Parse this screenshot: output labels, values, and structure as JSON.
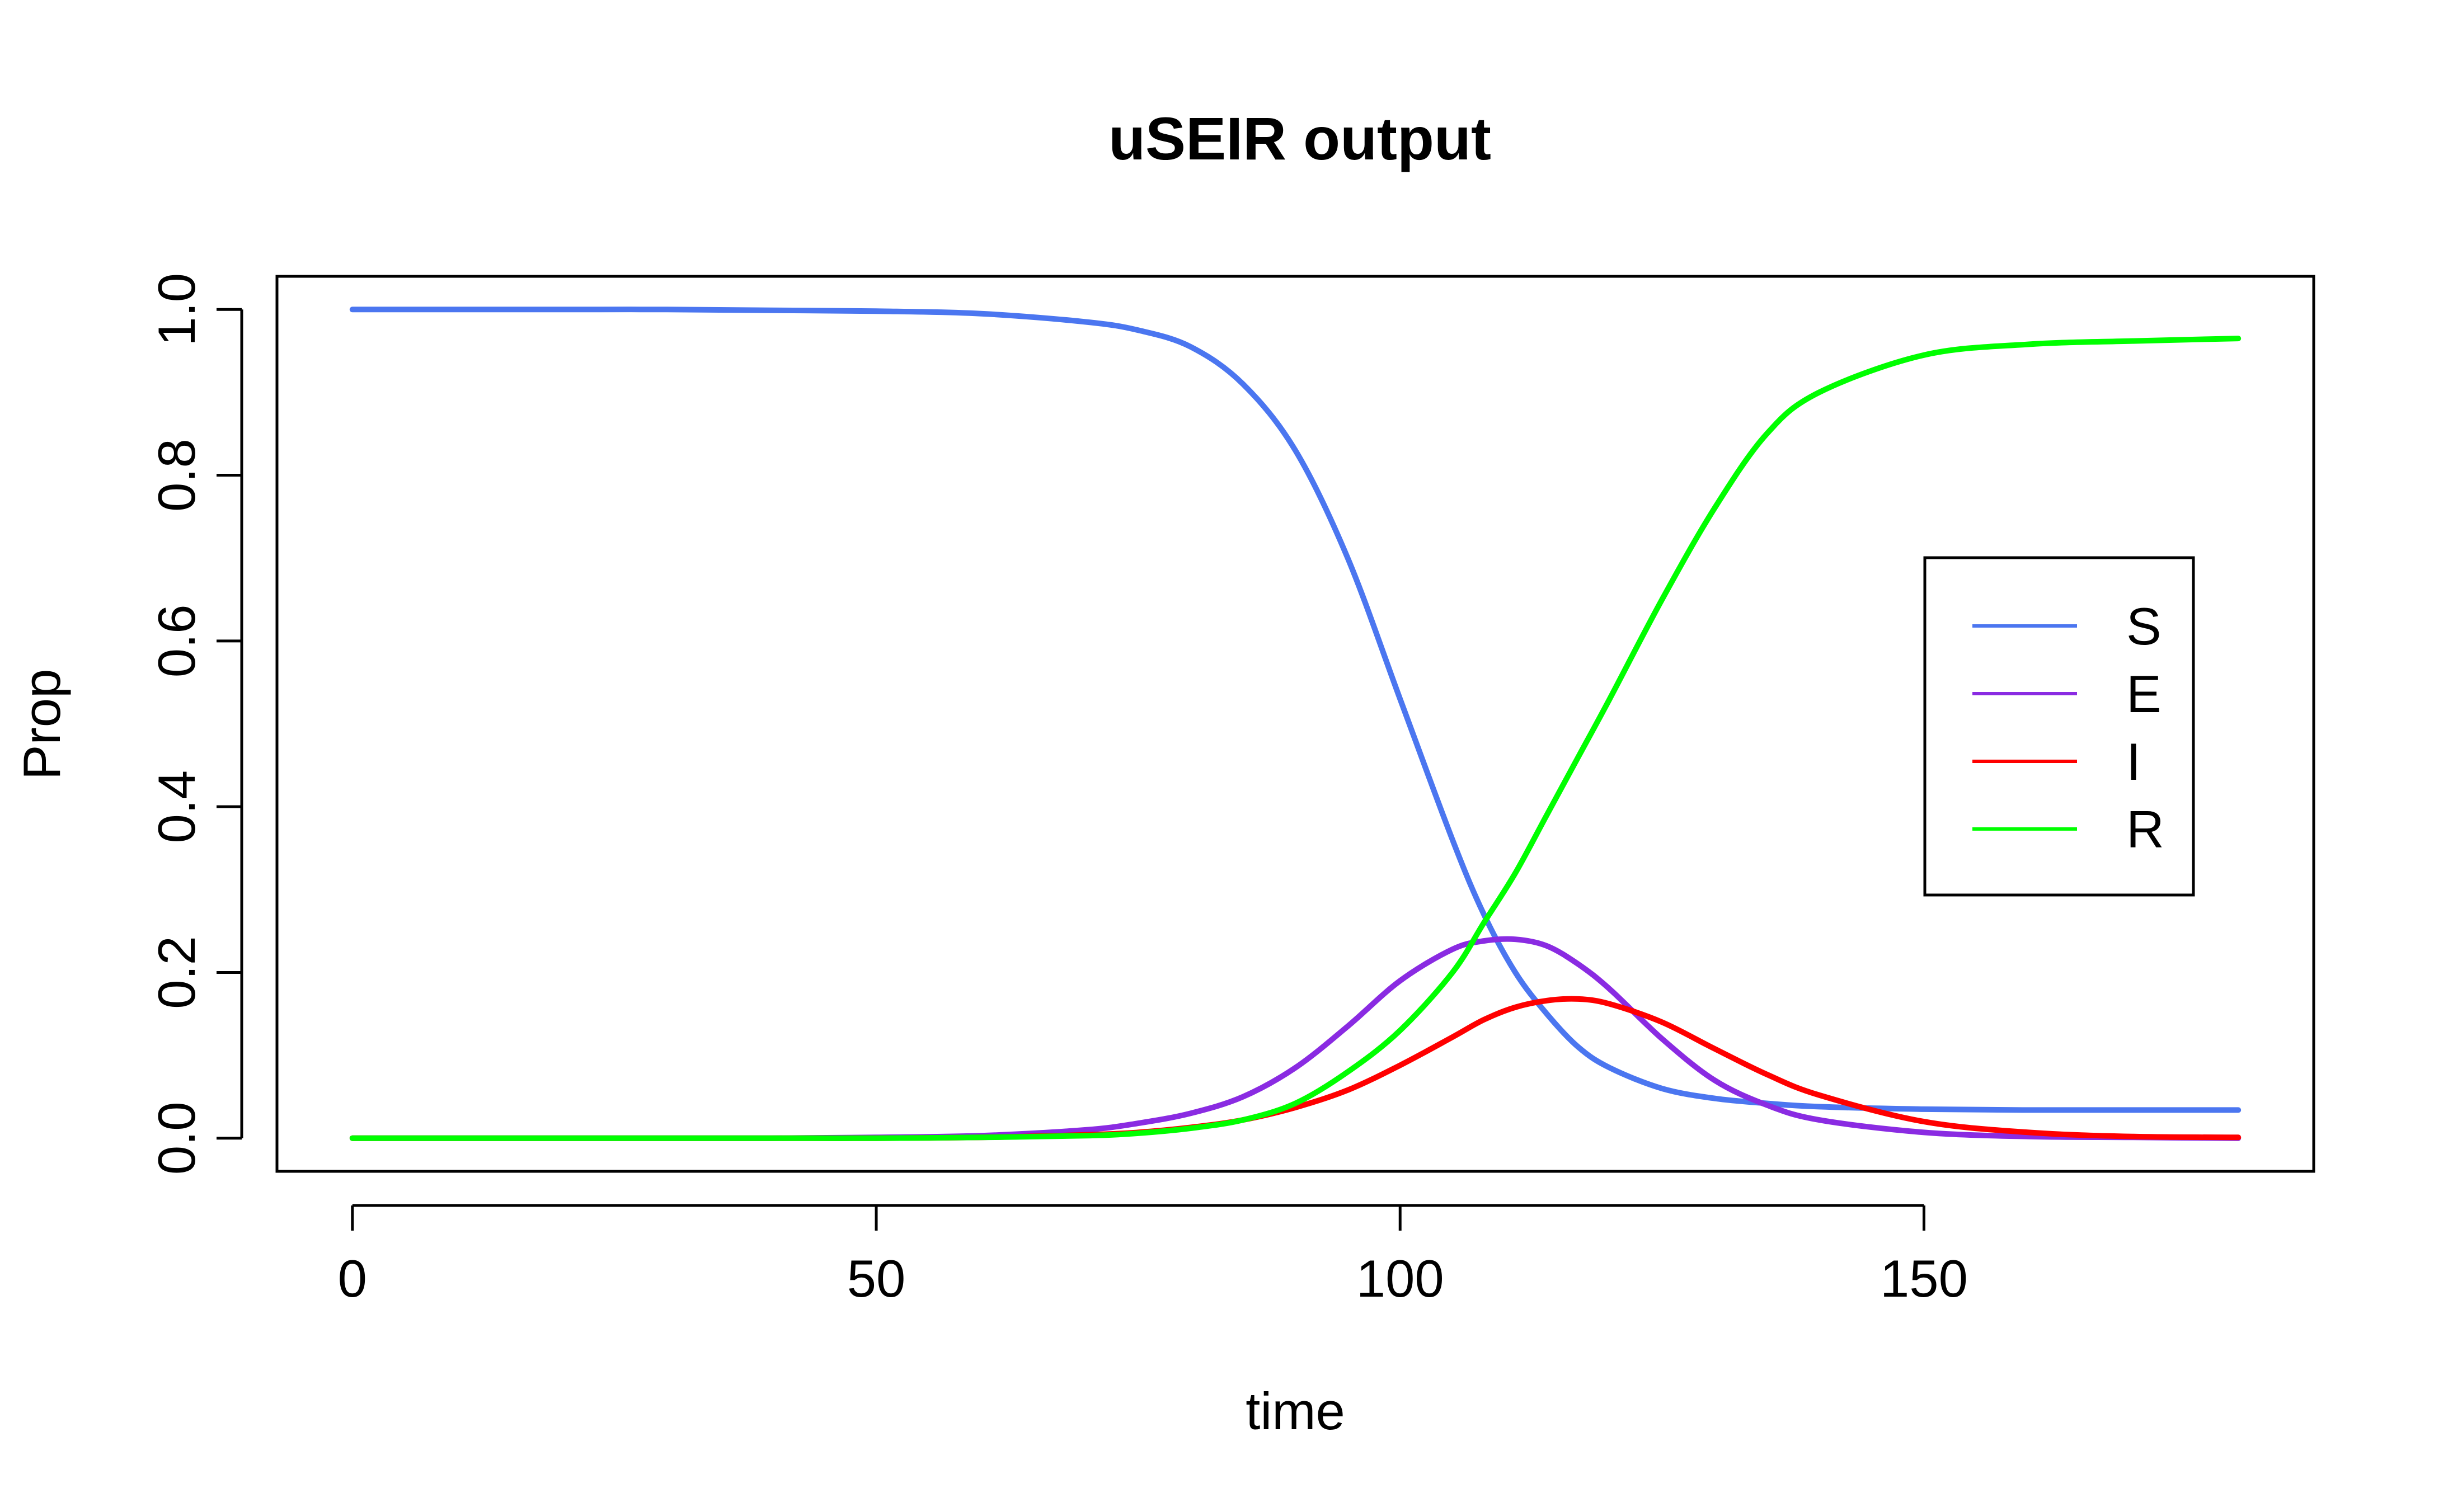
{
  "chart_data": {
    "type": "line",
    "title": "uSEIR output",
    "xlabel": "time",
    "ylabel": "Prop",
    "xlim": [
      -7.2,
      187.2
    ],
    "ylim": [
      -0.04,
      1.04
    ],
    "xticks": [
      0,
      50,
      100,
      150
    ],
    "xtick_labels": [
      "0",
      "50",
      "100",
      "150"
    ],
    "yticks": [
      0.0,
      0.2,
      0.4,
      0.6,
      0.8,
      1.0
    ],
    "ytick_labels": [
      "0.0",
      "0.2",
      "0.4",
      "0.6",
      "0.8",
      "1.0"
    ],
    "grid": false,
    "legend_position": "right",
    "x": [
      0,
      10,
      20,
      30,
      40,
      50,
      60,
      70,
      75,
      80,
      85,
      90,
      95,
      100,
      105,
      108,
      111,
      114,
      117,
      120,
      125,
      130,
      135,
      140,
      150,
      160,
      170,
      180
    ],
    "series": [
      {
        "name": "S",
        "color": "#4b76f0",
        "values": [
          1.0,
          1.0,
          1.0,
          1.0,
          0.999,
          0.998,
          0.995,
          0.985,
          0.975,
          0.955,
          0.91,
          0.83,
          0.7,
          0.53,
          0.36,
          0.27,
          0.2,
          0.15,
          0.11,
          0.085,
          0.06,
          0.048,
          0.042,
          0.038,
          0.035,
          0.034,
          0.034,
          0.034
        ]
      },
      {
        "name": "E",
        "color": "#8a2be2",
        "values": [
          0.0,
          0.0,
          0.0,
          0.0,
          0.0,
          0.001,
          0.003,
          0.01,
          0.018,
          0.03,
          0.05,
          0.085,
          0.135,
          0.19,
          0.228,
          0.238,
          0.24,
          0.232,
          0.21,
          0.18,
          0.12,
          0.07,
          0.04,
          0.022,
          0.007,
          0.002,
          0.001,
          0.0
        ]
      },
      {
        "name": "I",
        "color": "#ff0000",
        "values": [
          0.0,
          0.0,
          0.0,
          0.0,
          0.0,
          0.0,
          0.001,
          0.004,
          0.007,
          0.013,
          0.022,
          0.037,
          0.058,
          0.088,
          0.122,
          0.143,
          0.158,
          0.166,
          0.168,
          0.162,
          0.14,
          0.108,
          0.077,
          0.052,
          0.02,
          0.007,
          0.002,
          0.001
        ]
      },
      {
        "name": "R",
        "color": "#00ff00",
        "values": [
          0.0,
          0.0,
          0.0,
          0.0,
          0.0,
          0.0,
          0.001,
          0.003,
          0.006,
          0.012,
          0.022,
          0.042,
          0.08,
          0.13,
          0.2,
          0.26,
          0.32,
          0.39,
          0.46,
          0.53,
          0.65,
          0.76,
          0.85,
          0.9,
          0.945,
          0.958,
          0.962,
          0.965
        ]
      }
    ]
  }
}
